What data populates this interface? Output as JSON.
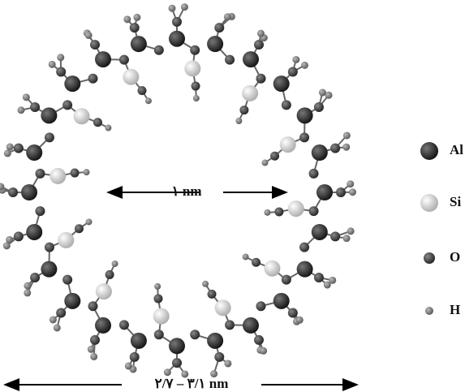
{
  "labels": {
    "inner": "۱ nm",
    "outer": "۲/۷ – ۳/۱ nm"
  },
  "legend": [
    {
      "label": "Al"
    },
    {
      "label": "Si"
    },
    {
      "label": "O"
    },
    {
      "label": "H"
    }
  ]
}
